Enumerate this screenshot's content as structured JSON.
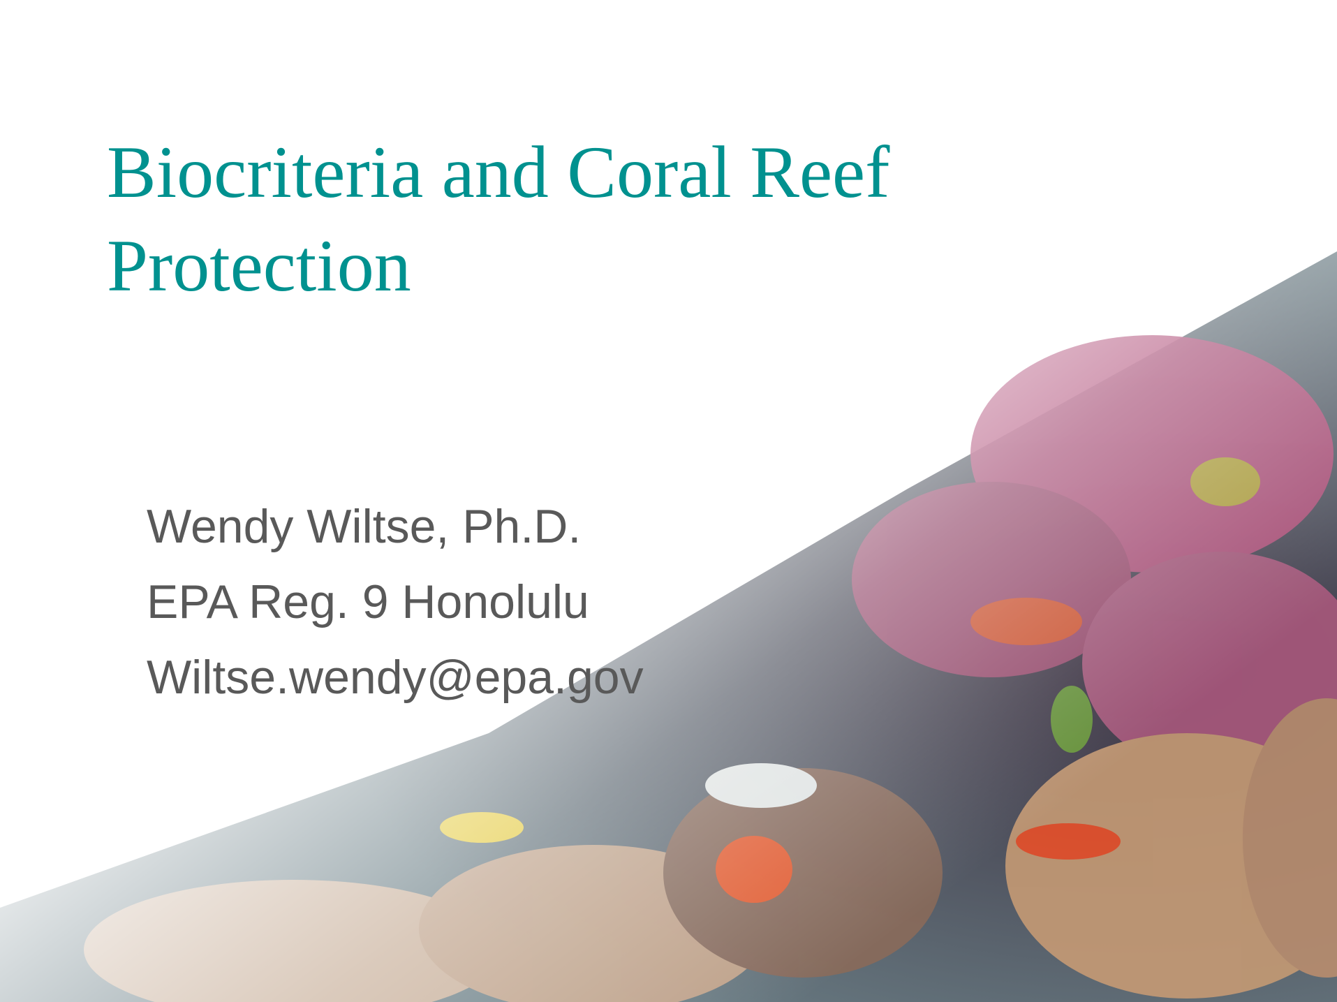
{
  "slide": {
    "title": "Biocriteria and Coral Reef Protection",
    "subtitle_lines": [
      "Wendy Wiltse, Ph.D.",
      "EPA Reg. 9 Honolulu",
      "Wiltse.wendy@epa.gov"
    ]
  }
}
